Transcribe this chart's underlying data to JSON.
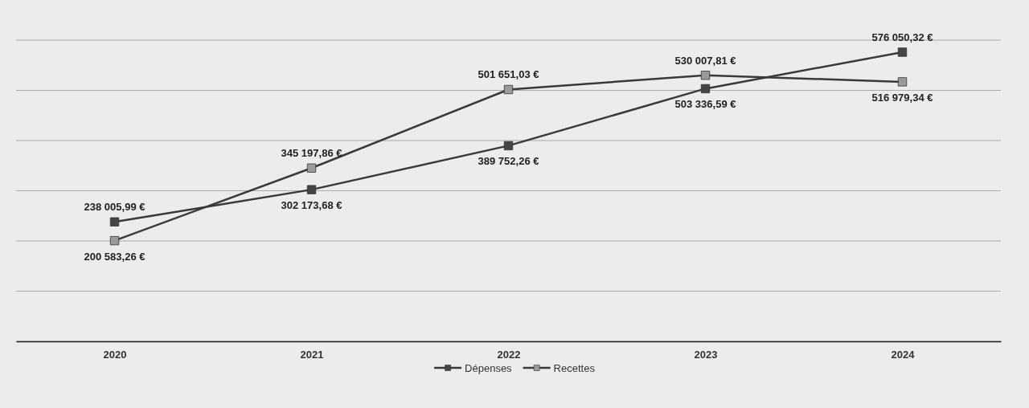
{
  "chart_data": {
    "type": "line",
    "categories": [
      "2020",
      "2021",
      "2022",
      "2023",
      "2024"
    ],
    "series": [
      {
        "name": "Dépenses",
        "color": "#454545",
        "values": [
          238005.99,
          302173.68,
          389752.26,
          503336.59,
          576050.32
        ],
        "value_labels": [
          "238 005,99 €",
          "302 173,68 €",
          "389 752,26 €",
          "503 336,59 €",
          "576 050,32 €"
        ]
      },
      {
        "name": "Recettes",
        "color": "#9a9a9a",
        "values": [
          200583.26,
          345197.86,
          501651.03,
          530007.81,
          516979.34
        ],
        "value_labels": [
          "200 583,26 €",
          "345 197,86 €",
          "501 651,03 €",
          "530 007,81 €",
          "516 979,34 €"
        ]
      }
    ],
    "ylim": [
      0,
      600000
    ],
    "yticks": [
      {
        "value": 0,
        "label": null
      },
      {
        "value": 100000,
        "label": null
      },
      {
        "value": 200000,
        "label": null
      },
      {
        "value": 300000,
        "label": null
      },
      {
        "value": 400000,
        "label": null
      },
      {
        "value": 500000,
        "label": null
      },
      {
        "value": 600000,
        "label": null
      }
    ],
    "tick_labels": "x",
    "grid": "y",
    "legend": "bottom",
    "marker": "square",
    "line_style": "solid"
  }
}
